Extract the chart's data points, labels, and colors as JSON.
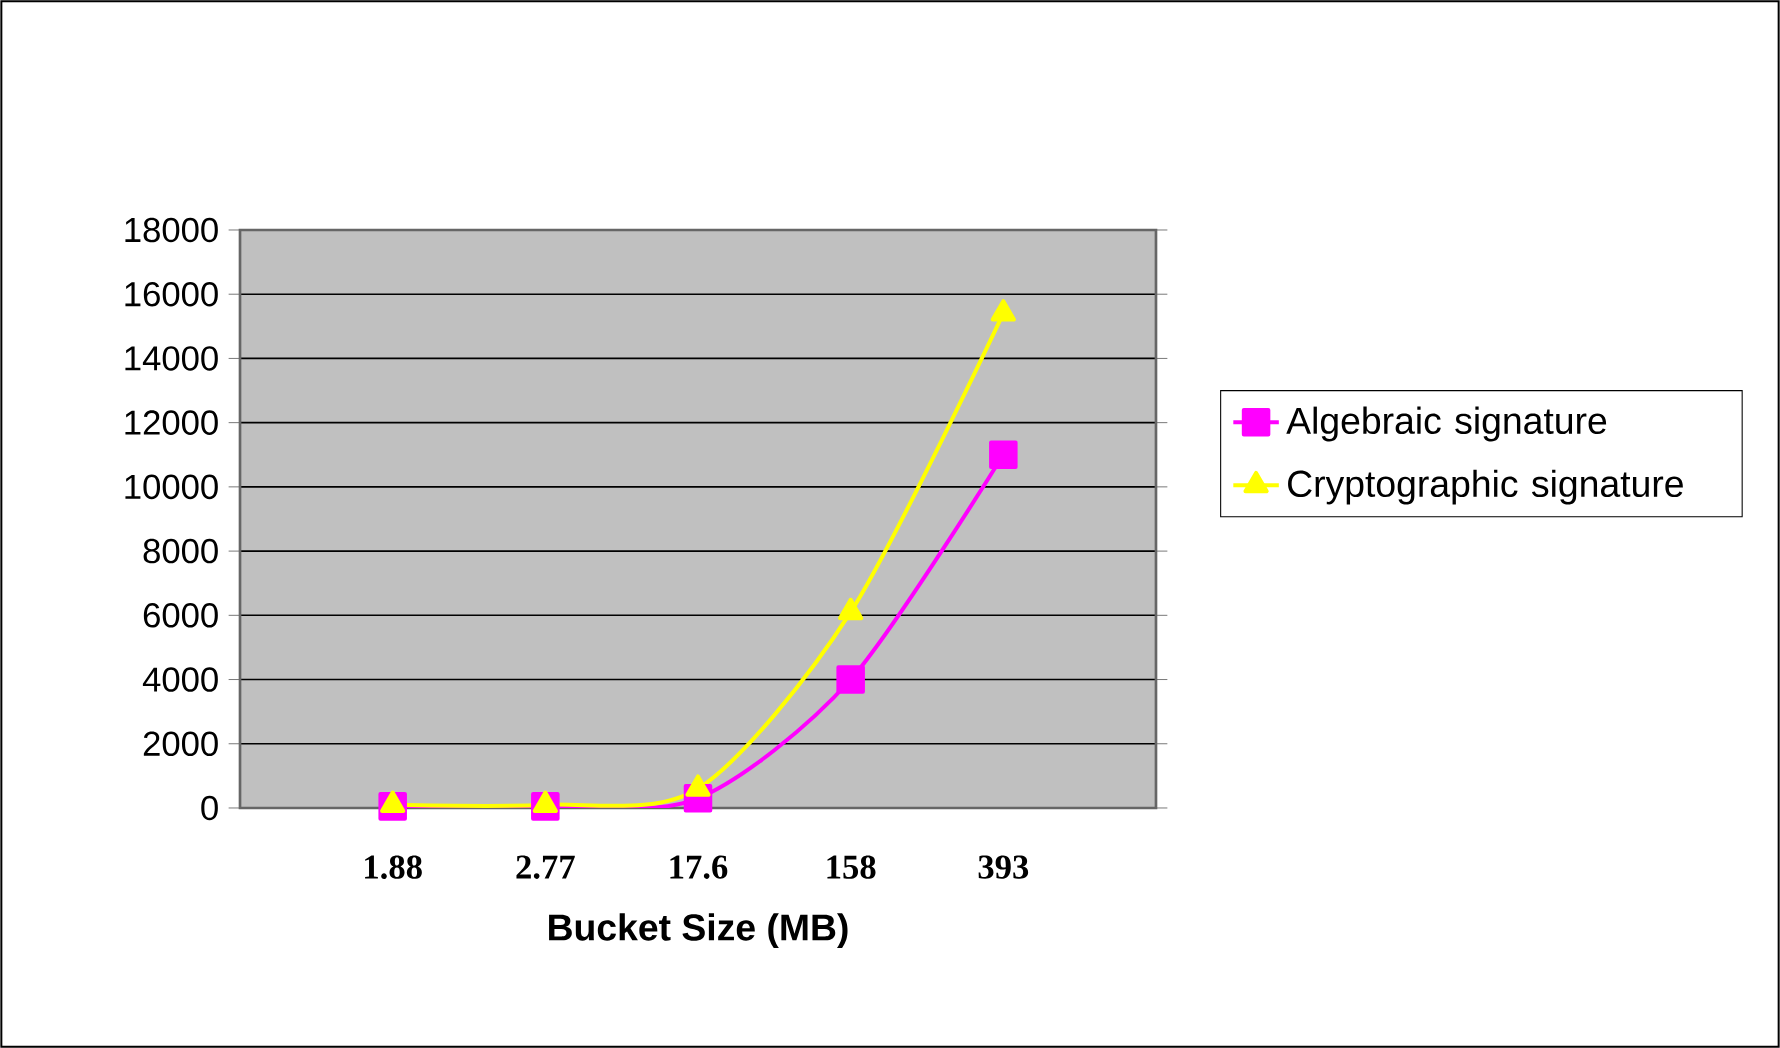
{
  "chart_data": {
    "type": "line",
    "xlabel": "Bucket Size (MB)",
    "categories": [
      "1.88",
      "2.77",
      "17.6",
      "158",
      "393"
    ],
    "series": [
      {
        "name": "Algebraic signature",
        "color": "#ff00ff",
        "marker": "square",
        "values": [
          50,
          50,
          300,
          4000,
          11000
        ]
      },
      {
        "name": "Cryptographic signature",
        "color": "#ffff00",
        "marker": "triangle",
        "values": [
          100,
          100,
          600,
          6100,
          15400
        ]
      }
    ],
    "ylim": [
      0,
      18000
    ],
    "yticks": [
      0,
      2000,
      4000,
      6000,
      8000,
      10000,
      12000,
      14000,
      16000,
      18000
    ],
    "grid": "y",
    "legend": "right"
  }
}
